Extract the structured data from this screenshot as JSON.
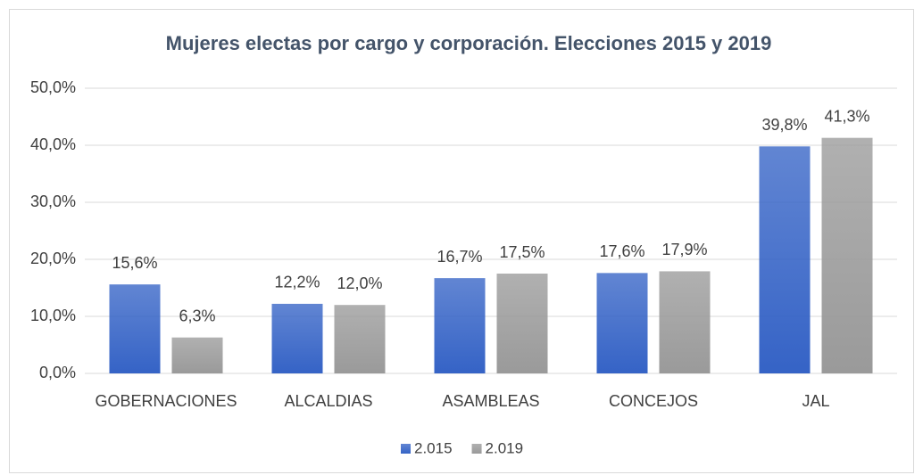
{
  "chart_data": {
    "type": "bar",
    "title": "Mujeres electas por cargo y corporación. Elecciones 2015 y 2019",
    "categories": [
      "GOBERNACIONES",
      "ALCALDIAS",
      "ASAMBLEAS",
      "CONCEJOS",
      "JAL"
    ],
    "series": [
      {
        "name": "2.015",
        "color": "#3563c6",
        "values": [
          15.6,
          12.2,
          16.7,
          17.6,
          39.8
        ],
        "value_labels": [
          "15,6%",
          "12,2%",
          "16,7%",
          "17,6%",
          "39,8%"
        ]
      },
      {
        "name": "2.019",
        "color": "#9a9a9a",
        "values": [
          6.3,
          12.0,
          17.5,
          17.9,
          41.3
        ],
        "value_labels": [
          "6,3%",
          "12,0%",
          "17,5%",
          "17,9%",
          "41,3%"
        ]
      }
    ],
    "ylim": [
      0,
      50
    ],
    "yticks": [
      {
        "value": 0,
        "label": "0,0%"
      },
      {
        "value": 10,
        "label": "10,0%"
      },
      {
        "value": 20,
        "label": "20,0%"
      },
      {
        "value": 30,
        "label": "30,0%"
      },
      {
        "value": 40,
        "label": "40,0%"
      },
      {
        "value": 50,
        "label": "50,0%"
      }
    ],
    "grid": true,
    "legend": "bottom"
  }
}
